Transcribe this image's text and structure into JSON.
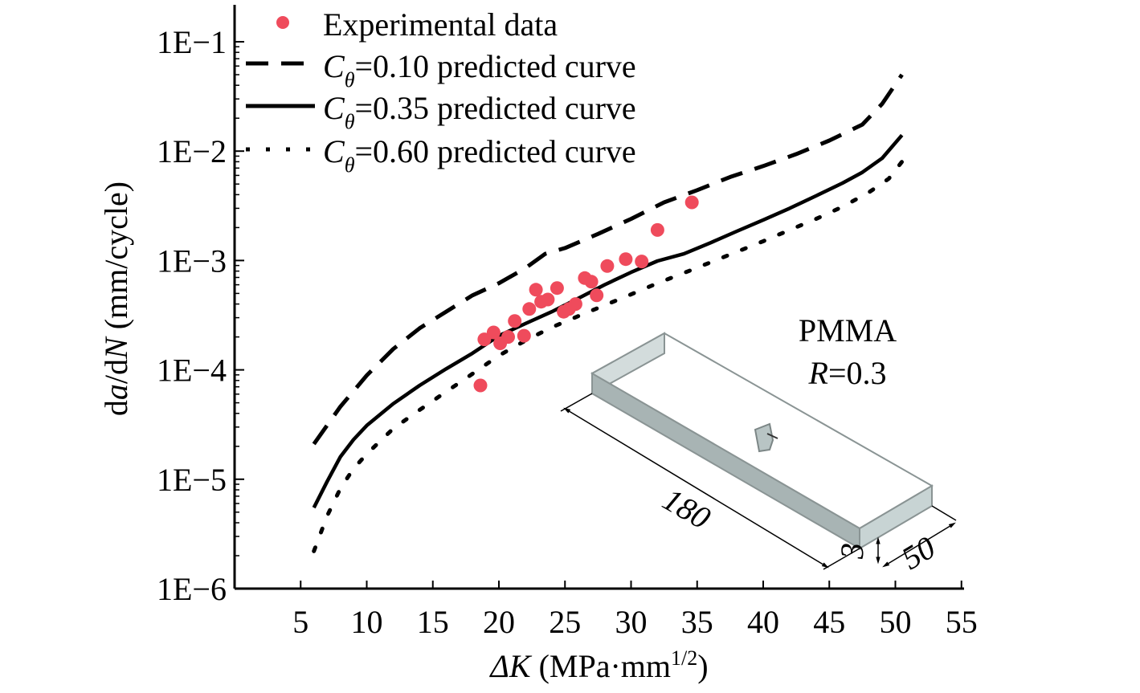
{
  "chart_data": {
    "type": "scatter",
    "x_axis": {
      "label_symbol": "ΔK",
      "label_units": " (MPa·mm",
      "label_sup": "1/2",
      "label_close": ")",
      "ticks": [
        5,
        10,
        15,
        20,
        25,
        30,
        35,
        40,
        45,
        50,
        55
      ],
      "range": [
        0,
        55
      ]
    },
    "y_axis": {
      "scale": "log",
      "label_prefix": "d",
      "label_a": "a",
      "label_mid": "/d",
      "label_N": "N",
      "label_units": " (mm/cycle)",
      "tick_values": [
        1e-06,
        1e-05,
        0.0001,
        0.001,
        0.01,
        0.1
      ],
      "tick_labels": [
        "1E−6",
        "1E−5",
        "1E−4",
        "1E−3",
        "1E−2",
        "1E−1"
      ],
      "range": [
        1e-06,
        0.2
      ]
    },
    "legend": {
      "position": "top-left",
      "entries": [
        {
          "key": "experimental",
          "label": "Experimental data",
          "style": "marker"
        },
        {
          "key": "c010",
          "symbol": "C",
          "sub": "θ",
          "label": "=0.10 predicted curve",
          "style": "dashed"
        },
        {
          "key": "c035",
          "symbol": "C",
          "sub": "θ",
          "label": "=0.35 predicted curve",
          "style": "solid"
        },
        {
          "key": "c060",
          "symbol": "C",
          "sub": "θ",
          "label": "=0.60 predicted curve",
          "style": "dotted"
        }
      ]
    },
    "colors": {
      "experimental": "#ef4b5c",
      "curves": "#000000",
      "specimen_fill": "#c4d0d0",
      "specimen_stroke": "#8a9494"
    },
    "series": [
      {
        "key": "experimental",
        "points": [
          [
            18.6,
            7.2e-05
          ],
          [
            18.9,
            0.00019
          ],
          [
            19.6,
            0.00022
          ],
          [
            20.1,
            0.000175
          ],
          [
            20.7,
            0.0002
          ],
          [
            21.2,
            0.00028
          ],
          [
            21.9,
            0.000205
          ],
          [
            22.3,
            0.00036
          ],
          [
            22.8,
            0.00054
          ],
          [
            23.2,
            0.00042
          ],
          [
            23.7,
            0.00044
          ],
          [
            24.4,
            0.00056
          ],
          [
            24.9,
            0.00034
          ],
          [
            25.3,
            0.00036
          ],
          [
            25.8,
            0.0004
          ],
          [
            26.5,
            0.00069
          ],
          [
            27.0,
            0.00064
          ],
          [
            27.4,
            0.00048
          ],
          [
            28.2,
            0.00089
          ],
          [
            29.6,
            0.00103
          ],
          [
            30.8,
            0.00098
          ],
          [
            32.0,
            0.0019
          ],
          [
            34.6,
            0.0034
          ]
        ]
      },
      {
        "key": "c010",
        "points": [
          [
            6,
            2.1e-05
          ],
          [
            8,
            4.6e-05
          ],
          [
            10,
            8.9e-05
          ],
          [
            12,
            0.000155
          ],
          [
            14,
            0.00024
          ],
          [
            16,
            0.00034
          ],
          [
            18,
            0.00048
          ],
          [
            20,
            0.00062
          ],
          [
            22,
            0.00085
          ],
          [
            23.5,
            0.00115
          ],
          [
            25,
            0.0013
          ],
          [
            27.5,
            0.00175
          ],
          [
            30,
            0.0024
          ],
          [
            32.5,
            0.0034
          ],
          [
            35,
            0.0044
          ],
          [
            37.5,
            0.0058
          ],
          [
            40,
            0.0073
          ],
          [
            42.5,
            0.0094
          ],
          [
            45,
            0.0125
          ],
          [
            47.5,
            0.0175
          ],
          [
            49,
            0.027
          ],
          [
            50.5,
            0.05
          ]
        ]
      },
      {
        "key": "c035",
        "points": [
          [
            6,
            5.5e-06
          ],
          [
            7,
            9.5e-06
          ],
          [
            8,
            1.6e-05
          ],
          [
            9,
            2.3e-05
          ],
          [
            10,
            3.1e-05
          ],
          [
            12,
            4.9e-05
          ],
          [
            14,
            7.2e-05
          ],
          [
            16,
            0.000102
          ],
          [
            18,
            0.000142
          ],
          [
            20,
            0.000205
          ],
          [
            22,
            0.000265
          ],
          [
            24,
            0.00034
          ],
          [
            26,
            0.00045
          ],
          [
            28,
            0.0006
          ],
          [
            30,
            0.00078
          ],
          [
            32,
            0.00099
          ],
          [
            34,
            0.00115
          ],
          [
            36,
            0.00145
          ],
          [
            38,
            0.00185
          ],
          [
            40,
            0.00235
          ],
          [
            42,
            0.003
          ],
          [
            44,
            0.0039
          ],
          [
            46,
            0.0051
          ],
          [
            47.5,
            0.0064
          ],
          [
            49,
            0.0086
          ],
          [
            50.5,
            0.014
          ]
        ]
      },
      {
        "key": "c060",
        "points": [
          [
            6,
            2.2e-06
          ],
          [
            7,
            4.6e-06
          ],
          [
            8,
            8.2e-06
          ],
          [
            9,
            1.25e-05
          ],
          [
            10,
            1.7e-05
          ],
          [
            12,
            2.9e-05
          ],
          [
            14,
            4.3e-05
          ],
          [
            16,
            6.3e-05
          ],
          [
            18,
            9.2e-05
          ],
          [
            20,
            0.000135
          ],
          [
            22,
            0.000185
          ],
          [
            24,
            0.000245
          ],
          [
            26,
            0.00031
          ],
          [
            28,
            0.00039
          ],
          [
            30,
            0.00049
          ],
          [
            32,
            0.00062
          ],
          [
            34,
            0.00077
          ],
          [
            36,
            0.00096
          ],
          [
            38,
            0.0012
          ],
          [
            40,
            0.0015
          ],
          [
            42,
            0.0019
          ],
          [
            44,
            0.0024
          ],
          [
            46,
            0.0031
          ],
          [
            48,
            0.0042
          ],
          [
            49.5,
            0.0056
          ],
          [
            50.5,
            0.008
          ]
        ]
      }
    ],
    "annotations": {
      "material": "PMMA",
      "ratio_symbol": "R",
      "ratio_value": "=0.3",
      "dimensions": [
        "180",
        "3",
        "50"
      ]
    }
  }
}
